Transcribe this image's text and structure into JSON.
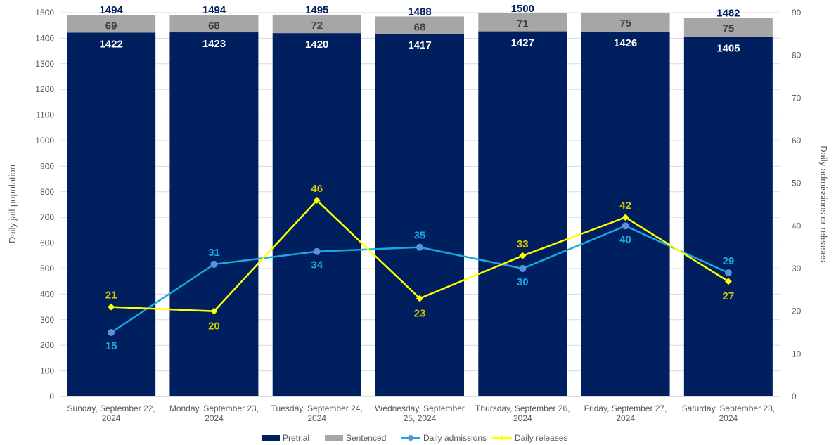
{
  "chart_data": {
    "type": "bar",
    "categories": [
      [
        "Sunday, September 22,",
        "2024"
      ],
      [
        "Monday, September 23,",
        "2024"
      ],
      [
        "Tuesday, September 24,",
        "2024"
      ],
      [
        "Wednesday, September",
        "25, 2024"
      ],
      [
        "Thursday, September 26,",
        "2024"
      ],
      [
        "Friday, September 27,",
        "2024"
      ],
      [
        "Saturday, September 28,",
        "2024"
      ]
    ],
    "ylabel": "Daily jail population",
    "y2label": "Daily admissions or releases",
    "ylim": [
      0,
      1500
    ],
    "y2lim": [
      0,
      90
    ],
    "yticks": [
      0,
      100,
      200,
      300,
      400,
      500,
      600,
      700,
      800,
      900,
      1000,
      1100,
      1200,
      1300,
      1400,
      1500
    ],
    "y2ticks": [
      0,
      10,
      20,
      30,
      40,
      50,
      60,
      70,
      80,
      90
    ],
    "totals": [
      1494,
      1494,
      1495,
      1488,
      1500,
      1501,
      1482
    ],
    "total_labels": [
      "1494",
      "1494",
      "1495",
      "1488",
      "1500",
      "",
      "1482"
    ],
    "legend_position": "bottom",
    "grid": true,
    "series": [
      {
        "name": "Pretrial",
        "kind": "bar",
        "axis": "left",
        "color": "#001f5f",
        "label_color": "#ffffff",
        "values": [
          1422,
          1423,
          1420,
          1417,
          1427,
          1426,
          1405
        ]
      },
      {
        "name": "Sentenced",
        "kind": "bar",
        "axis": "left",
        "color": "#a6a6a6",
        "label_color": "#404040",
        "values": [
          69,
          68,
          72,
          68,
          71,
          75,
          75
        ]
      },
      {
        "name": "Daily admissions",
        "kind": "line",
        "axis": "right",
        "color": "#1ba8e0",
        "marker_color": "#5b8fd6",
        "values": [
          15,
          31,
          34,
          35,
          30,
          40,
          29
        ]
      },
      {
        "name": "Daily releases",
        "kind": "line",
        "axis": "right",
        "color": "#ffff00",
        "marker_color": "#ffff00",
        "label_color": "#d6c800",
        "values": [
          21,
          20,
          46,
          23,
          33,
          42,
          27
        ]
      }
    ]
  }
}
